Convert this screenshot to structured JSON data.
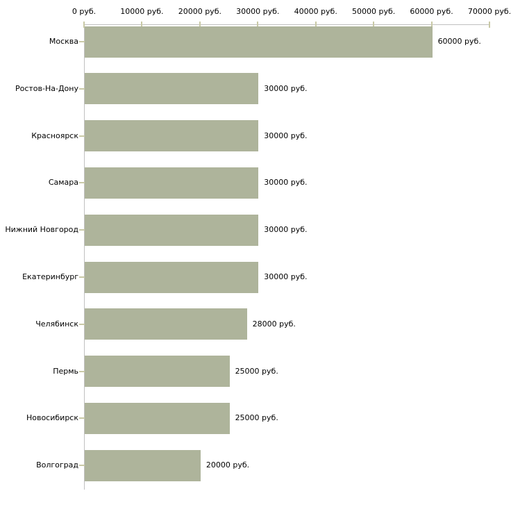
{
  "chart_data": {
    "type": "bar",
    "orientation": "horizontal",
    "title": "",
    "xlabel": "",
    "ylabel": "",
    "xlim": [
      0,
      70000
    ],
    "grid": false,
    "legend": null,
    "categories": [
      "Москва",
      "Ростов-На-Дону",
      "Красноярск",
      "Самара",
      "Нижний Новгород",
      "Екатеринбург",
      "Челябинск",
      "Пермь",
      "Новосибирск",
      "Волгоград"
    ],
    "values": [
      60000,
      30000,
      30000,
      30000,
      30000,
      30000,
      28000,
      25000,
      25000,
      20000
    ],
    "value_labels": [
      "60000 руб.",
      "30000 руб.",
      "30000 руб.",
      "30000 руб.",
      "30000 руб.",
      "30000 руб.",
      "28000 руб.",
      "25000 руб.",
      "25000 руб.",
      "20000 руб."
    ],
    "x_ticks": [
      0,
      10000,
      20000,
      30000,
      40000,
      50000,
      60000,
      70000
    ],
    "x_tick_labels": [
      "0 руб.",
      "10000 руб.",
      "20000 руб.",
      "30000 руб.",
      "40000 руб.",
      "50000 руб.",
      "60000 руб.",
      "70000 руб."
    ],
    "colors": {
      "bar": "#aeb49b",
      "axis_line": "#c0c0c0",
      "tick": "#c9c9a6",
      "text": "#000000",
      "background": "#ffffff"
    }
  }
}
